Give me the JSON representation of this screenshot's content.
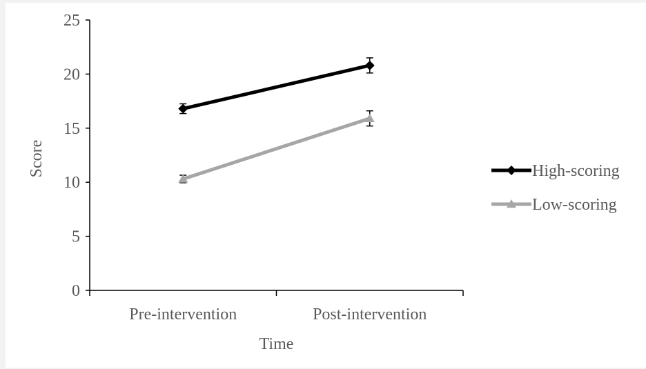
{
  "chart_data": {
    "type": "line",
    "categories": [
      "Pre-intervention",
      "Post-intervention"
    ],
    "xlabel": "Time",
    "ylabel": "Score",
    "ylim": [
      0,
      25
    ],
    "yticks": [
      0,
      5,
      10,
      15,
      20,
      25
    ],
    "grid": false,
    "legend_position": "right",
    "series": [
      {
        "name": "High-scoring",
        "values": [
          16.8,
          20.8
        ],
        "error": [
          0.45,
          0.7
        ],
        "color": "#000000",
        "marker": "diamond"
      },
      {
        "name": "Low-scoring",
        "values": [
          10.3,
          15.9
        ],
        "error": [
          0.35,
          0.7
        ],
        "color": "#a6a6a6",
        "marker": "triangle"
      }
    ]
  }
}
